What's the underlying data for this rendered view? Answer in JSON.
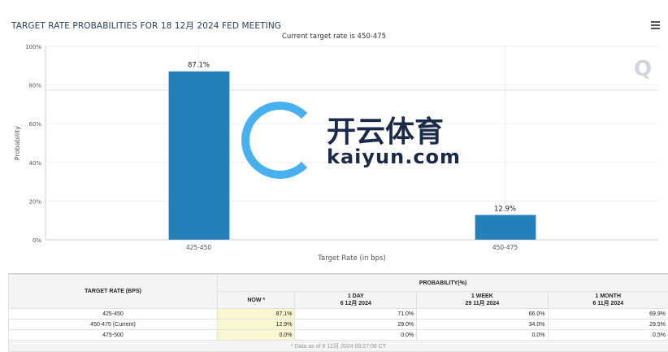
{
  "header": {
    "title": "TARGET RATE PROBABILITIES FOR 18 12月 2024 FED MEETING",
    "subtitle": "Current target rate is 450-475",
    "menu_icon": "hamburger-icon"
  },
  "chart_data": {
    "type": "bar",
    "title": "TARGET RATE PROBABILITIES FOR 18 12月 2024 FED MEETING",
    "subtitle": "Current target rate is 450-475",
    "categories": [
      "425-450",
      "450-475"
    ],
    "values": [
      87.1,
      12.9
    ],
    "data_labels": [
      "87.1%",
      "12.9%"
    ],
    "xlabel": "Target Rate (in bps)",
    "ylabel": "Probability",
    "ylim": [
      0,
      100
    ],
    "yticks": [
      "0%",
      "20%",
      "40%",
      "60%",
      "80%",
      "100%"
    ],
    "grid": true,
    "color": "#2580b9"
  },
  "table": {
    "col_header": "TARGET RATE (BPS)",
    "group_header": "PROBABILITY(%)",
    "columns": [
      {
        "l1": "NOW *",
        "l2": ""
      },
      {
        "l1": "1 DAY",
        "l2": "6 12月 2024"
      },
      {
        "l1": "1 WEEK",
        "l2": "29 11月 2024"
      },
      {
        "l1": "1 MONTH",
        "l2": "6 11月 2024"
      }
    ],
    "rows": [
      {
        "rate": "425-450",
        "v": [
          "87.1%",
          "71.0%",
          "66.0%",
          "69.9%"
        ]
      },
      {
        "rate": "450-475 (Current)",
        "v": [
          "12.9%",
          "29.0%",
          "34.0%",
          "29.5%"
        ]
      },
      {
        "rate": "475-500",
        "v": [
          "0.0%",
          "0.0%",
          "0.0%",
          "0.5%"
        ]
      }
    ],
    "footnote": "* Data as of 6 12月 2024 09:27:08 CT"
  },
  "watermark": {
    "cn": "开云体育",
    "en": "kaiyun.com"
  }
}
